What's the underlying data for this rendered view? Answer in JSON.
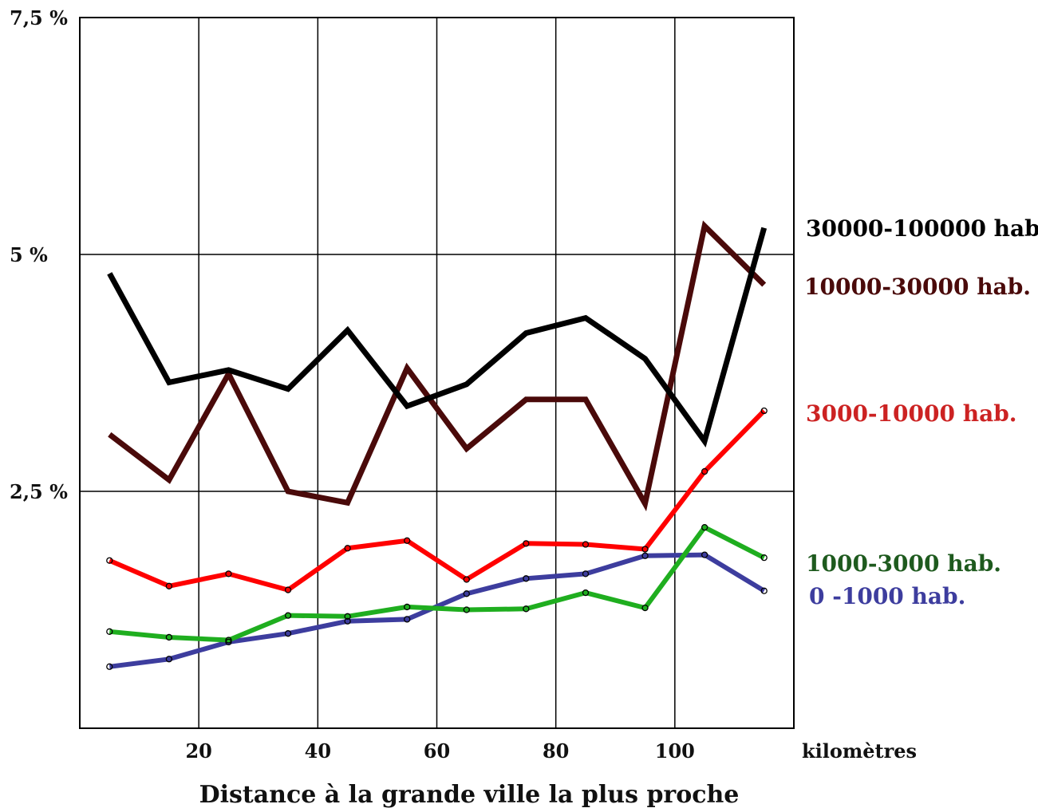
{
  "chart_data": {
    "type": "line",
    "title": "",
    "xlabel": "Distance à la grande ville la plus proche",
    "x_unit": "kilomètres",
    "ylabel": "",
    "xlim": [
      0,
      120
    ],
    "ylim": [
      0,
      7.5
    ],
    "x_ticks": [
      20,
      40,
      60,
      80,
      100
    ],
    "x_tick_labels": [
      "20",
      "40",
      "60",
      "80",
      "100"
    ],
    "y_ticks": [
      2.5,
      5,
      7.5
    ],
    "y_tick_labels": [
      "2,5 %",
      "5 %",
      "7,5 %"
    ],
    "grid": true,
    "legend": "labels at right end of each line",
    "x": [
      5,
      15,
      25,
      35,
      45,
      55,
      65,
      75,
      85,
      95,
      105,
      115
    ],
    "series": [
      {
        "name": "30000-100000 hab.",
        "color": "#000000",
        "markers": false,
        "values": [
          4.8,
          3.65,
          3.78,
          3.58,
          4.2,
          3.4,
          3.63,
          4.17,
          4.33,
          3.9,
          3.03,
          5.28
        ]
      },
      {
        "name": "10000-30000 hab.",
        "color": "#4a0a0a",
        "markers": false,
        "values": [
          3.1,
          2.62,
          3.74,
          2.5,
          2.38,
          3.8,
          2.95,
          3.47,
          3.47,
          2.37,
          5.3,
          4.68
        ]
      },
      {
        "name": "3000-10000 hab.",
        "color": "#ff0000",
        "label_color": "#cc2222",
        "markers": true,
        "values": [
          1.77,
          1.5,
          1.63,
          1.46,
          1.9,
          1.98,
          1.57,
          1.95,
          1.94,
          1.89,
          2.71,
          3.35
        ]
      },
      {
        "name": "1000-3000 hab.",
        "color": "#1fae1f",
        "label_color": "#1e5a1e",
        "markers": true,
        "values": [
          1.02,
          0.96,
          0.93,
          1.19,
          1.18,
          1.28,
          1.25,
          1.26,
          1.43,
          1.27,
          2.12,
          1.8
        ]
      },
      {
        "name": "0 -1000 hab.",
        "color": "#3d3d9e",
        "label_color": "#3d3d9e",
        "markers": true,
        "values": [
          0.65,
          0.73,
          0.91,
          1.0,
          1.13,
          1.15,
          1.42,
          1.58,
          1.63,
          1.82,
          1.83,
          1.45
        ]
      }
    ]
  }
}
